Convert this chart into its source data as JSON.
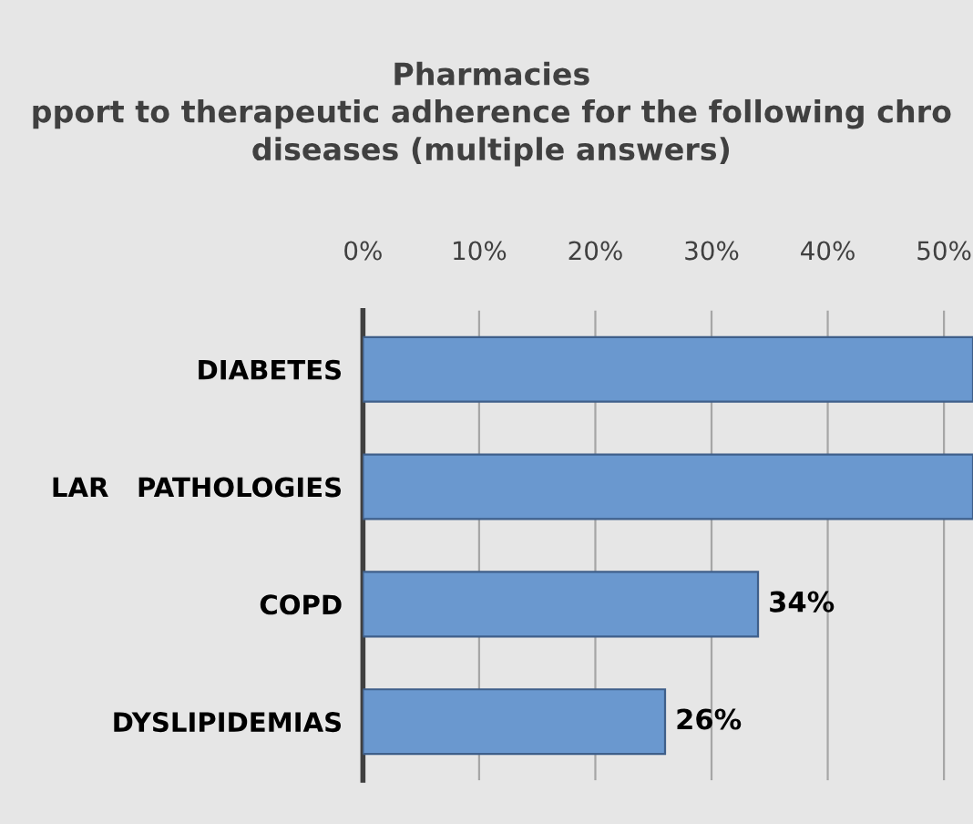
{
  "chart_data": {
    "type": "bar",
    "orientation": "horizontal",
    "title": "Pharmacies\npport to therapeutic adherence for the following chro\ndiseases (multiple answers)",
    "categories": [
      "DIABETES",
      "LAR   PATHOLOGIES",
      "COPD",
      "DYSLIPIDEMIAS"
    ],
    "values": [
      52.5,
      52.5,
      34,
      26
    ],
    "value_labels": [
      null,
      null,
      "34%",
      "26%"
    ],
    "color": "#6a98cf",
    "xlim": [
      0,
      52.5
    ],
    "xticks": [
      {
        "value": 0,
        "label": "0%"
      },
      {
        "value": 10,
        "label": "10%"
      },
      {
        "value": 20,
        "label": "20%"
      },
      {
        "value": 30,
        "label": "30%"
      },
      {
        "value": 40,
        "label": "40%"
      },
      {
        "value": 50,
        "label": "50%"
      }
    ],
    "grid": "x"
  }
}
